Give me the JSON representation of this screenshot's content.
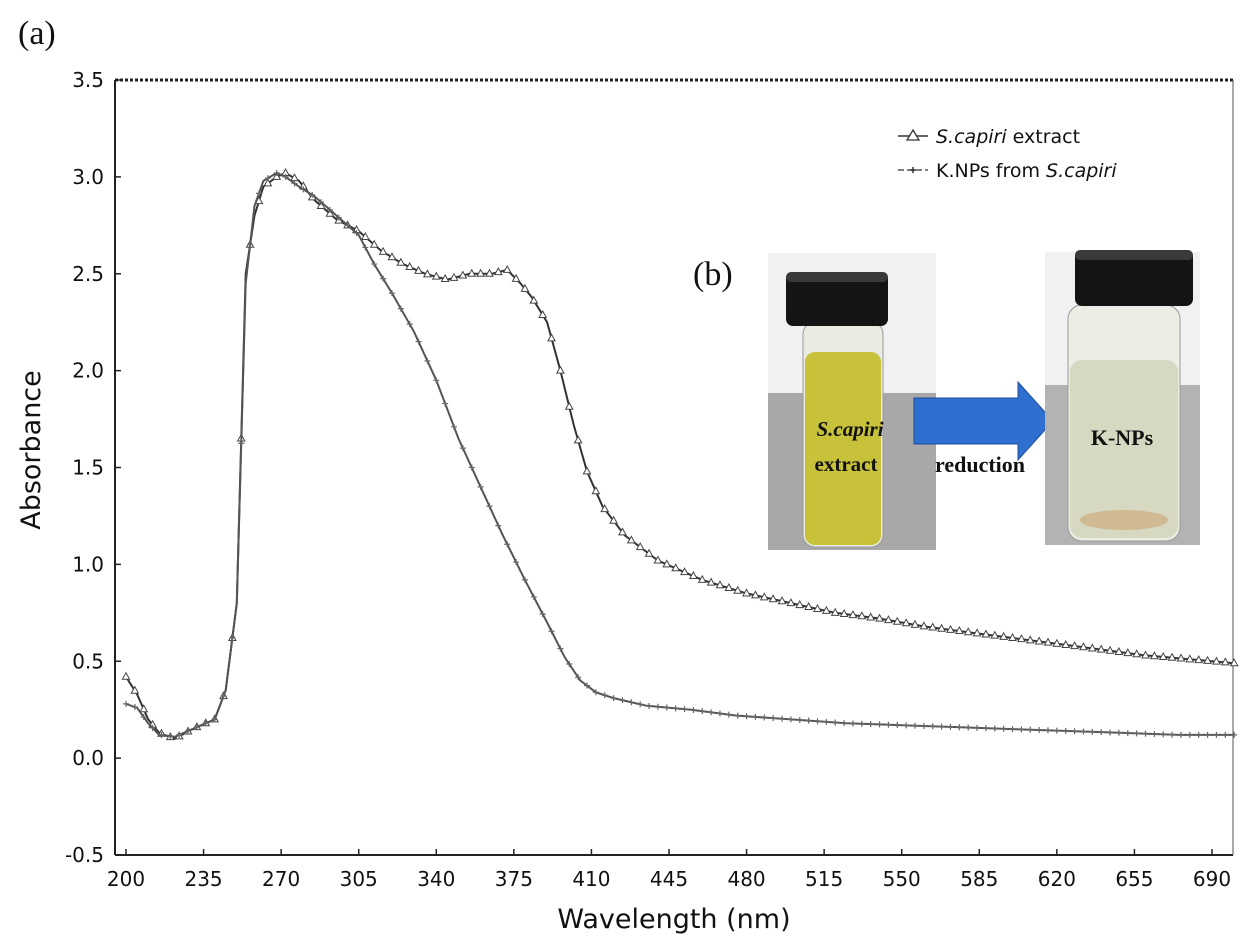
{
  "figure": {
    "panel_a_label": "(a)",
    "panel_b_label": "(b)"
  },
  "chart_data": {
    "type": "line",
    "title": "",
    "xlabel": "Wavelength (nm)",
    "ylabel": "Absorbance",
    "xlim": [
      200,
      700
    ],
    "ylim": [
      -0.5,
      3.5
    ],
    "x_ticks": [
      200,
      235,
      270,
      305,
      340,
      375,
      410,
      445,
      480,
      515,
      550,
      585,
      620,
      655,
      690
    ],
    "y_ticks": [
      -0.5,
      0.0,
      0.5,
      1.0,
      1.5,
      2.0,
      2.5,
      3.0,
      3.5
    ],
    "y_tick_labels": [
      "-0.5",
      "0.0",
      "0.5",
      "1.0",
      "1.5",
      "2.0",
      "2.5",
      "3.0",
      "3.5"
    ],
    "legend_position": "top-right",
    "series": [
      {
        "name": "S.capiri extract",
        "legend_italic": "S.capiri",
        "legend_rest": " extract",
        "marker": "triangle",
        "color": "#333333",
        "points": [
          [
            200,
            0.42
          ],
          [
            205,
            0.33
          ],
          [
            210,
            0.2
          ],
          [
            215,
            0.13
          ],
          [
            222,
            0.1
          ],
          [
            230,
            0.15
          ],
          [
            240,
            0.2
          ],
          [
            245,
            0.35
          ],
          [
            250,
            0.8
          ],
          [
            254,
            2.5
          ],
          [
            258,
            2.8
          ],
          [
            262,
            2.95
          ],
          [
            268,
            3.0
          ],
          [
            272,
            3.02
          ],
          [
            278,
            2.98
          ],
          [
            285,
            2.88
          ],
          [
            295,
            2.78
          ],
          [
            305,
            2.72
          ],
          [
            315,
            2.62
          ],
          [
            325,
            2.55
          ],
          [
            335,
            2.5
          ],
          [
            345,
            2.47
          ],
          [
            355,
            2.5
          ],
          [
            365,
            2.5
          ],
          [
            372,
            2.52
          ],
          [
            378,
            2.45
          ],
          [
            383,
            2.38
          ],
          [
            390,
            2.25
          ],
          [
            396,
            2.0
          ],
          [
            402,
            1.72
          ],
          [
            408,
            1.48
          ],
          [
            415,
            1.3
          ],
          [
            425,
            1.15
          ],
          [
            440,
            1.02
          ],
          [
            460,
            0.92
          ],
          [
            480,
            0.85
          ],
          [
            500,
            0.8
          ],
          [
            520,
            0.75
          ],
          [
            540,
            0.72
          ],
          [
            560,
            0.68
          ],
          [
            580,
            0.65
          ],
          [
            600,
            0.62
          ],
          [
            620,
            0.59
          ],
          [
            640,
            0.56
          ],
          [
            660,
            0.53
          ],
          [
            680,
            0.51
          ],
          [
            700,
            0.49
          ]
        ]
      },
      {
        "name": "K.NPs from S.capiri",
        "legend_plain": "K.NPs from ",
        "legend_italic": "S.capiri",
        "marker": "cross",
        "color": "#555555",
        "points": [
          [
            200,
            0.28
          ],
          [
            205,
            0.26
          ],
          [
            210,
            0.18
          ],
          [
            215,
            0.12
          ],
          [
            222,
            0.11
          ],
          [
            230,
            0.15
          ],
          [
            240,
            0.2
          ],
          [
            245,
            0.35
          ],
          [
            250,
            0.8
          ],
          [
            254,
            2.45
          ],
          [
            258,
            2.85
          ],
          [
            262,
            2.98
          ],
          [
            268,
            3.02
          ],
          [
            272,
            3.0
          ],
          [
            278,
            2.95
          ],
          [
            285,
            2.9
          ],
          [
            295,
            2.8
          ],
          [
            305,
            2.7
          ],
          [
            312,
            2.55
          ],
          [
            320,
            2.4
          ],
          [
            330,
            2.2
          ],
          [
            340,
            1.95
          ],
          [
            350,
            1.65
          ],
          [
            360,
            1.4
          ],
          [
            370,
            1.15
          ],
          [
            380,
            0.92
          ],
          [
            390,
            0.7
          ],
          [
            398,
            0.52
          ],
          [
            405,
            0.4
          ],
          [
            412,
            0.34
          ],
          [
            420,
            0.31
          ],
          [
            435,
            0.27
          ],
          [
            455,
            0.25
          ],
          [
            475,
            0.22
          ],
          [
            500,
            0.2
          ],
          [
            525,
            0.18
          ],
          [
            550,
            0.17
          ],
          [
            575,
            0.16
          ],
          [
            600,
            0.15
          ],
          [
            625,
            0.14
          ],
          [
            650,
            0.13
          ],
          [
            675,
            0.12
          ],
          [
            700,
            0.12
          ]
        ]
      }
    ],
    "inset": {
      "left_vial_label_italic": "S.capiri",
      "left_vial_label": "extract",
      "arrow_label": "reduction",
      "right_vial_label": "K-NPs",
      "left_liquid_color": "#c8c23a",
      "right_liquid_color": "#d7d8c2",
      "arrow_color": "#2f6fd0"
    }
  }
}
